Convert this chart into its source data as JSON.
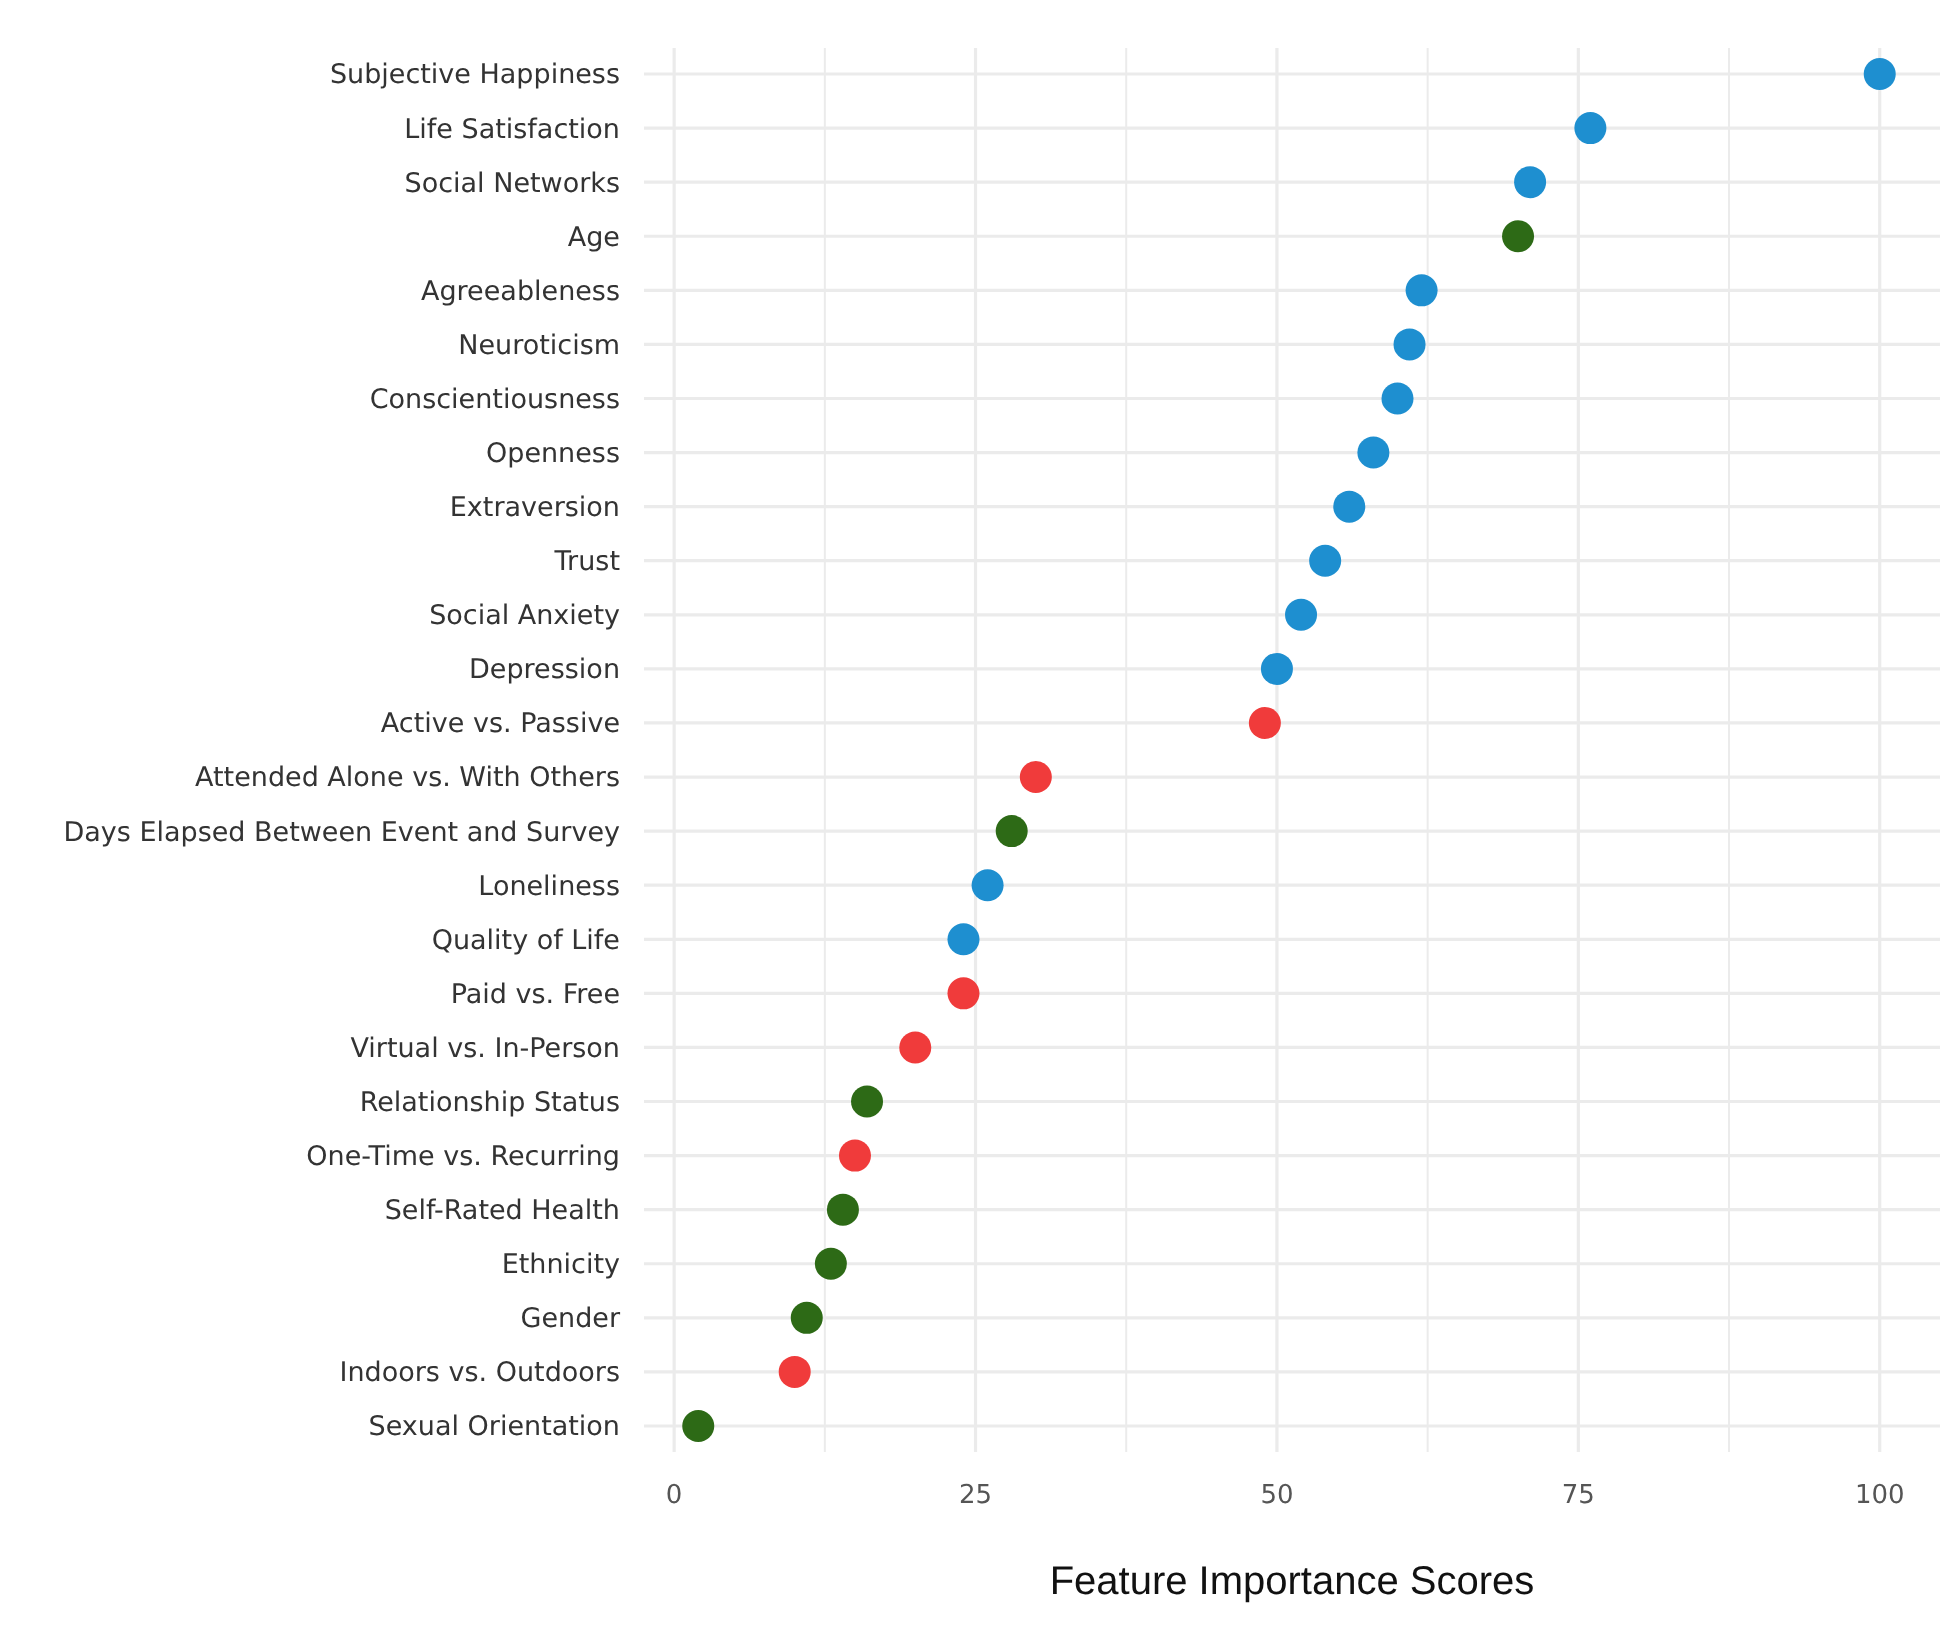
{
  "chart_data": {
    "type": "scatter",
    "orientation": "horizontal",
    "xlabel": "Feature Importance Scores",
    "categories": [
      "Subjective Happiness",
      "Life Satisfaction",
      "Social Networks",
      "Age",
      "Agreeableness",
      "Neuroticism",
      "Conscientiousness",
      "Openness",
      "Extraversion",
      "Trust",
      "Social Anxiety",
      "Depression",
      "Active vs. Passive",
      "Attended Alone vs. With Others",
      "Days Elapsed Between Event and Survey",
      "Loneliness",
      "Quality of Life",
      "Paid vs. Free",
      "Virtual vs. In-Person",
      "Relationship Status",
      "One-Time vs. Recurring",
      "Self-Rated Health",
      "Ethnicity",
      "Gender",
      "Indoors vs. Outdoors",
      "Sexual Orientation"
    ],
    "values": [
      100,
      76,
      71,
      70,
      62,
      61,
      60,
      58,
      56,
      54,
      52,
      50,
      49,
      30,
      28,
      26,
      24,
      24,
      20,
      16,
      15,
      14,
      13,
      11,
      10,
      2
    ],
    "colors": [
      "#1e8fd0",
      "#1e8fd0",
      "#1e8fd0",
      "#2d6a16",
      "#1e8fd0",
      "#1e8fd0",
      "#1e8fd0",
      "#1e8fd0",
      "#1e8fd0",
      "#1e8fd0",
      "#1e8fd0",
      "#1e8fd0",
      "#f03b3b",
      "#f03b3b",
      "#2d6a16",
      "#1e8fd0",
      "#1e8fd0",
      "#f03b3b",
      "#f03b3b",
      "#2d6a16",
      "#f03b3b",
      "#2d6a16",
      "#2d6a16",
      "#2d6a16",
      "#f03b3b",
      "#2d6a16"
    ],
    "xlim": [
      -2.5,
      105
    ],
    "xticks": [
      0,
      {
        "value": 12.5,
        "label": null
      },
      25,
      {
        "value": 37.5,
        "label": null
      },
      50,
      {
        "value": 62.5,
        "label": null
      },
      75,
      {
        "value": 87.5,
        "label": null
      },
      100
    ],
    "grid": true,
    "marker": "circle"
  }
}
